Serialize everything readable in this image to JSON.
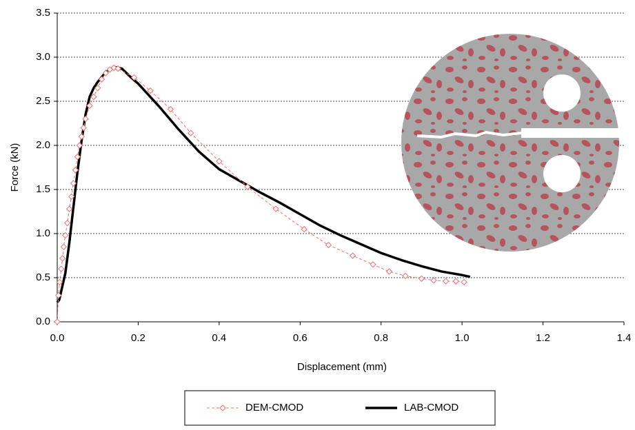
{
  "chart_data": {
    "type": "line",
    "x_label": "Displacement (mm)",
    "y_label": "Force (kN)",
    "xlim": [
      0,
      1.4
    ],
    "xticks": [
      {
        "value": 0,
        "label": "0.0"
      },
      0.2,
      0.4,
      0.6,
      0.8,
      {
        "value": 1,
        "label": "1.0"
      },
      1.2,
      1.4
    ],
    "ylim": [
      0,
      3.5
    ],
    "yticks": [
      {
        "value": 0,
        "label": "0.0"
      },
      0.5,
      {
        "value": 1,
        "label": "1.0"
      },
      1.5,
      {
        "value": 2,
        "label": "2.0"
      },
      2.5,
      {
        "value": 3,
        "label": "3.0"
      },
      3.5
    ],
    "grid": true,
    "series": [
      {
        "name": "DEM-CMOD",
        "color": "#f07070",
        "style": "dashed",
        "marker": "diamond",
        "x": [
          0,
          0.003,
          0.006,
          0.01,
          0.013,
          0.016,
          0.02,
          0.025,
          0.03,
          0.035,
          0.04,
          0.045,
          0.05,
          0.055,
          0.06,
          0.065,
          0.07,
          0.08,
          0.09,
          0.1,
          0.11,
          0.12,
          0.13,
          0.14,
          0.15,
          0.19,
          0.23,
          0.28,
          0.33,
          0.4,
          0.47,
          0.54,
          0.61,
          0.67,
          0.73,
          0.78,
          0.82,
          0.86,
          0.9,
          0.93,
          0.96,
          0.985,
          1.005
        ],
        "values": [
          0,
          0.3,
          0.45,
          0.6,
          0.72,
          0.85,
          0.98,
          1.12,
          1.28,
          1.42,
          1.57,
          1.72,
          1.87,
          2.0,
          2.1,
          2.2,
          2.3,
          2.45,
          2.55,
          2.65,
          2.75,
          2.82,
          2.86,
          2.88,
          2.87,
          2.77,
          2.62,
          2.41,
          2.14,
          1.82,
          1.53,
          1.28,
          1.05,
          0.87,
          0.75,
          0.65,
          0.57,
          0.52,
          0.49,
          0.47,
          0.46,
          0.46,
          0.45
        ]
      },
      {
        "name": "LAB-CMOD",
        "color": "#000000",
        "style": "solid",
        "marker": "none",
        "x": [
          0,
          0.005,
          0.01,
          0.015,
          0.02,
          0.03,
          0.04,
          0.05,
          0.06,
          0.07,
          0.08,
          0.09,
          0.1,
          0.12,
          0.14,
          0.16,
          0.18,
          0.2,
          0.25,
          0.3,
          0.35,
          0.4,
          0.45,
          0.5,
          0.55,
          0.6,
          0.65,
          0.7,
          0.75,
          0.8,
          0.85,
          0.9,
          0.95,
          1.0,
          1.02
        ],
        "values": [
          0.22,
          0.25,
          0.35,
          0.45,
          0.55,
          0.9,
          1.3,
          1.7,
          2.05,
          2.35,
          2.55,
          2.65,
          2.72,
          2.83,
          2.89,
          2.87,
          2.78,
          2.7,
          2.45,
          2.18,
          1.93,
          1.73,
          1.6,
          1.47,
          1.35,
          1.22,
          1.09,
          0.98,
          0.88,
          0.78,
          0.7,
          0.63,
          0.57,
          0.53,
          0.51
        ]
      }
    ]
  }
}
